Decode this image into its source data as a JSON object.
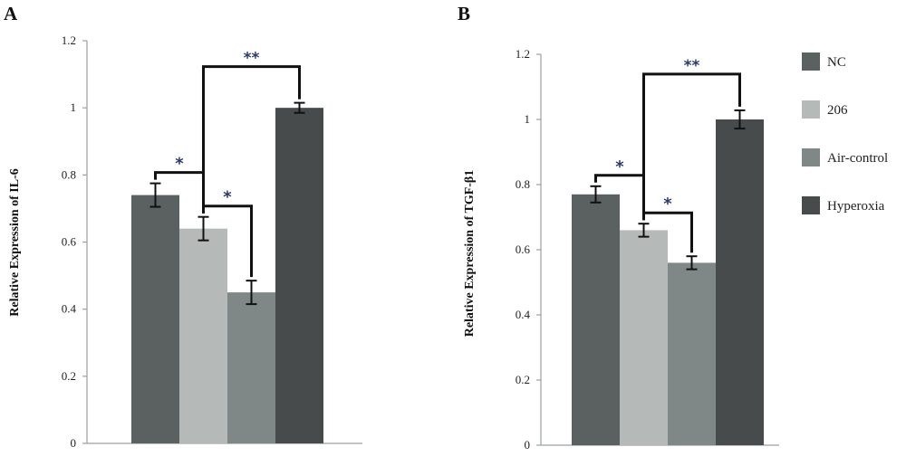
{
  "chart_data": [
    {
      "type": "bar",
      "panel": "A",
      "ylabel": "Relative Expression of IL-6",
      "ylim": [
        0,
        1.2
      ],
      "yticks": [
        "0",
        "0.2",
        "0.4",
        "0.6",
        "0.8",
        "1",
        "1.2"
      ],
      "series": [
        {
          "name": "NC",
          "value": 0.74,
          "error": 0.035
        },
        {
          "name": "206",
          "value": 0.64,
          "error": 0.035
        },
        {
          "name": "Air-control",
          "value": 0.45,
          "error": 0.035
        },
        {
          "name": "Hyperoxia",
          "value": 1.0,
          "error": 0.015
        }
      ],
      "significance": [
        {
          "from": 0,
          "to": 1,
          "label": "*"
        },
        {
          "from": 1,
          "to": 2,
          "label": "*"
        },
        {
          "from": 1,
          "to": 3,
          "label": "**"
        }
      ]
    },
    {
      "type": "bar",
      "panel": "B",
      "ylabel": "Relative Expression of TGF-β1",
      "ylim": [
        0,
        1.2
      ],
      "yticks": [
        "0",
        "0.2",
        "0.4",
        "0.6",
        "0.8",
        "1",
        "1.2"
      ],
      "series": [
        {
          "name": "NC",
          "value": 0.77,
          "error": 0.025
        },
        {
          "name": "206",
          "value": 0.66,
          "error": 0.02
        },
        {
          "name": "Air-control",
          "value": 0.56,
          "error": 0.02
        },
        {
          "name": "Hyperoxia",
          "value": 1.0,
          "error": 0.028
        }
      ],
      "significance": [
        {
          "from": 0,
          "to": 1,
          "label": "*"
        },
        {
          "from": 1,
          "to": 2,
          "label": "*"
        },
        {
          "from": 1,
          "to": 3,
          "label": "**"
        }
      ]
    }
  ],
  "legend": {
    "placement": "right",
    "items": [
      "NC",
      "206",
      "Air-control",
      "Hyperoxia"
    ]
  },
  "colors": {
    "NC": "#5b6061",
    "206": "#b5bab9",
    "Air-control": "#7f8787",
    "Hyperoxia": "#474b4c",
    "axis": "#9aa0a0",
    "bracket": "#111111",
    "star": "#2b3a6b"
  }
}
